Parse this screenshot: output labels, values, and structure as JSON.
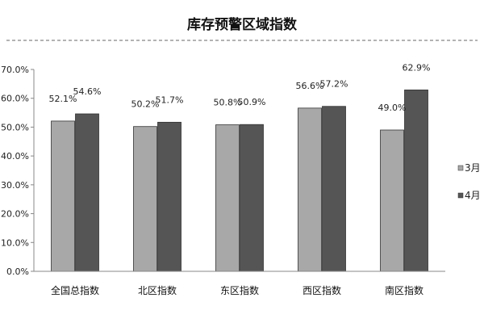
{
  "chart_data": {
    "type": "bar",
    "title": "库存预警区域指数",
    "categories": [
      "全国总指数",
      "北区指数",
      "东区指数",
      "西区指数",
      "南区指数"
    ],
    "series": [
      {
        "name": "3月",
        "color": "#a8a8a8",
        "values": [
          52.1,
          50.2,
          50.8,
          56.6,
          49.0
        ],
        "labels": [
          "52.1%",
          "50.2%",
          "50.8%",
          "56.6%",
          "49.0%"
        ]
      },
      {
        "name": "4月",
        "color": "#555555",
        "values": [
          54.6,
          51.7,
          50.9,
          57.2,
          62.9
        ],
        "labels": [
          "54.6%",
          "51.7%",
          "50.9%",
          "57.2%",
          "62.9%"
        ]
      }
    ],
    "ylim": [
      0,
      70
    ],
    "yticks": [
      "0.0%",
      "10.0%",
      "20.0%",
      "30.0%",
      "40.0%",
      "50.0%",
      "60.0%",
      "70.0%"
    ],
    "xlabel": "",
    "ylabel": "",
    "grid": false,
    "legend_position": "right"
  }
}
